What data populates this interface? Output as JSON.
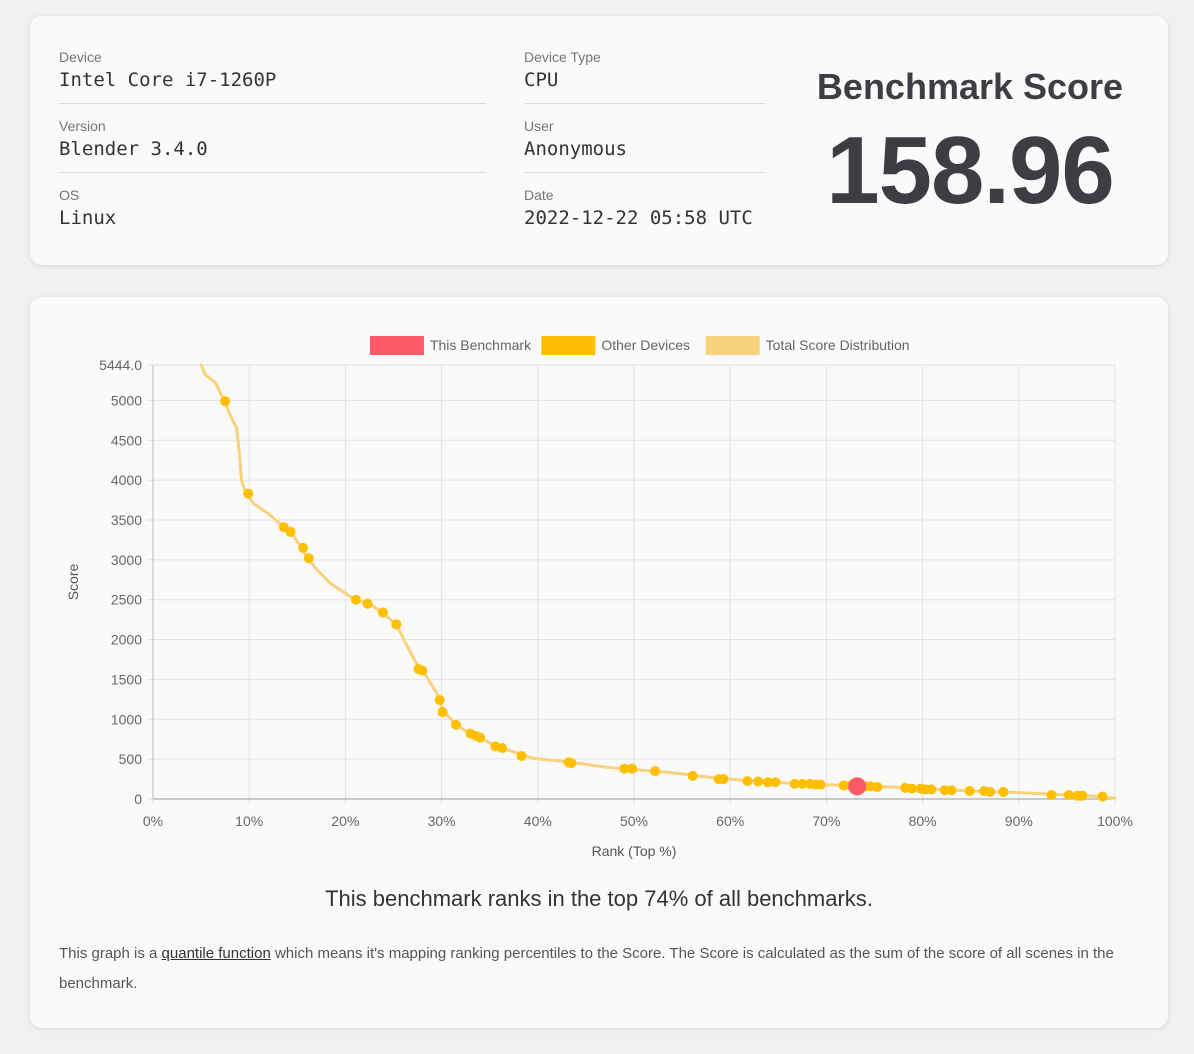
{
  "device": {
    "label": "Device",
    "value": "Intel Core i7-1260P"
  },
  "device_type": {
    "label": "Device Type",
    "value": "CPU"
  },
  "version": {
    "label": "Version",
    "value": "Blender 3.4.0"
  },
  "user": {
    "label": "User",
    "value": "Anonymous"
  },
  "os": {
    "label": "OS",
    "value": "Linux"
  },
  "date": {
    "label": "Date",
    "value": "2022-12-22 05:58 UTC"
  },
  "score": {
    "heading": "Benchmark Score",
    "value": "158.96"
  },
  "ranking_sentence": "This benchmark ranks in the top 74% of all benchmarks.",
  "explanation": {
    "before": "This graph is a ",
    "link": "quantile function",
    "after": " which means it's mapping ranking percentiles to the Score. The Score is calculated as the sum of the score of all scenes in the benchmark."
  },
  "chart_data": {
    "type": "line",
    "xlabel": "Rank (Top %)",
    "ylabel": "Score",
    "xlim": [
      0,
      100
    ],
    "ylim": [
      0,
      5444.0
    ],
    "x_ticks": [
      "0%",
      "10%",
      "20%",
      "30%",
      "40%",
      "50%",
      "60%",
      "70%",
      "80%",
      "90%",
      "100%"
    ],
    "y_ticks": [
      "0",
      "500",
      "1000",
      "1500",
      "2000",
      "2500",
      "3000",
      "3500",
      "4000",
      "4500",
      "5000",
      "5444.0"
    ],
    "y_tick_values": [
      0,
      500,
      1000,
      1500,
      2000,
      2500,
      3000,
      3500,
      4000,
      4500,
      5000,
      5444
    ],
    "grid": true,
    "legend_position": "top",
    "legend": [
      {
        "name": "This Benchmark",
        "color": "#ff5a6a"
      },
      {
        "name": "Other Devices",
        "color": "#ffbf00"
      },
      {
        "name": "Total Score Distribution",
        "color": "#f8d27c"
      }
    ],
    "distribution": {
      "name": "Total Score Distribution",
      "color": "#f8d27c",
      "points": [
        [
          5.0,
          5444
        ],
        [
          5.4,
          5330
        ],
        [
          6.5,
          5220
        ],
        [
          7.4,
          4990
        ],
        [
          8.0,
          4820
        ],
        [
          8.7,
          4650
        ],
        [
          9.0,
          4300
        ],
        [
          9.2,
          4000
        ],
        [
          9.6,
          3850
        ],
        [
          10.5,
          3700
        ],
        [
          12.0,
          3580
        ],
        [
          13.5,
          3420
        ],
        [
          14.4,
          3340
        ],
        [
          15.5,
          3140
        ],
        [
          16.0,
          3040
        ],
        [
          17.0,
          2880
        ],
        [
          18.5,
          2700
        ],
        [
          21.0,
          2500
        ],
        [
          22.4,
          2460
        ],
        [
          23.8,
          2340
        ],
        [
          25.3,
          2190
        ],
        [
          26.5,
          1900
        ],
        [
          27.6,
          1650
        ],
        [
          28.3,
          1560
        ],
        [
          29.5,
          1330
        ],
        [
          30.2,
          1100
        ],
        [
          31.5,
          930
        ],
        [
          33.0,
          820
        ],
        [
          34.0,
          770
        ],
        [
          35.5,
          670
        ],
        [
          37.5,
          590
        ],
        [
          39.5,
          510
        ],
        [
          43.5,
          460
        ],
        [
          47.0,
          400
        ],
        [
          50.0,
          370
        ],
        [
          54.0,
          330
        ],
        [
          58.0,
          270
        ],
        [
          62.0,
          230
        ],
        [
          66.0,
          200
        ],
        [
          70.0,
          180
        ],
        [
          75.0,
          160
        ],
        [
          80.0,
          130
        ],
        [
          85.0,
          100
        ],
        [
          90.0,
          80
        ],
        [
          95.0,
          50
        ],
        [
          98.0,
          35
        ],
        [
          100.0,
          10
        ]
      ]
    },
    "other_devices": {
      "name": "Other Devices",
      "color": "#ffbf00",
      "points": [
        [
          7.5,
          4990
        ],
        [
          9.9,
          3830
        ],
        [
          13.6,
          3410
        ],
        [
          14.3,
          3350
        ],
        [
          15.6,
          3150
        ],
        [
          16.2,
          3020
        ],
        [
          21.1,
          2500
        ],
        [
          22.3,
          2450
        ],
        [
          23.9,
          2340
        ],
        [
          25.3,
          2190
        ],
        [
          27.6,
          1630
        ],
        [
          28.0,
          1610
        ],
        [
          29.8,
          1240
        ],
        [
          30.1,
          1090
        ],
        [
          31.5,
          930
        ],
        [
          33.0,
          820
        ],
        [
          33.6,
          790
        ],
        [
          34.0,
          770
        ],
        [
          35.6,
          660
        ],
        [
          36.3,
          640
        ],
        [
          38.3,
          540
        ],
        [
          43.2,
          460
        ],
        [
          43.5,
          450
        ],
        [
          49.0,
          380
        ],
        [
          49.8,
          380
        ],
        [
          52.2,
          350
        ],
        [
          56.1,
          290
        ],
        [
          58.8,
          250
        ],
        [
          59.3,
          250
        ],
        [
          61.8,
          225
        ],
        [
          62.9,
          220
        ],
        [
          63.9,
          210
        ],
        [
          64.7,
          210
        ],
        [
          66.7,
          190
        ],
        [
          67.5,
          190
        ],
        [
          68.3,
          190
        ],
        [
          68.9,
          180
        ],
        [
          69.4,
          180
        ],
        [
          71.8,
          170
        ],
        [
          72.5,
          170
        ],
        [
          74.0,
          160
        ],
        [
          74.6,
          160
        ],
        [
          75.3,
          150
        ],
        [
          78.2,
          140
        ],
        [
          78.9,
          130
        ],
        [
          79.8,
          130
        ],
        [
          80.3,
          120
        ],
        [
          80.9,
          120
        ],
        [
          82.3,
          110
        ],
        [
          83.0,
          110
        ],
        [
          84.9,
          100
        ],
        [
          86.4,
          100
        ],
        [
          87.0,
          90
        ],
        [
          88.4,
          90
        ],
        [
          93.4,
          50
        ],
        [
          95.2,
          50
        ],
        [
          96.1,
          40
        ],
        [
          96.6,
          40
        ],
        [
          98.7,
          30
        ]
      ]
    },
    "this_benchmark": {
      "name": "This Benchmark",
      "color": "#ff5a6a",
      "point": [
        73.2,
        158.96
      ]
    }
  }
}
